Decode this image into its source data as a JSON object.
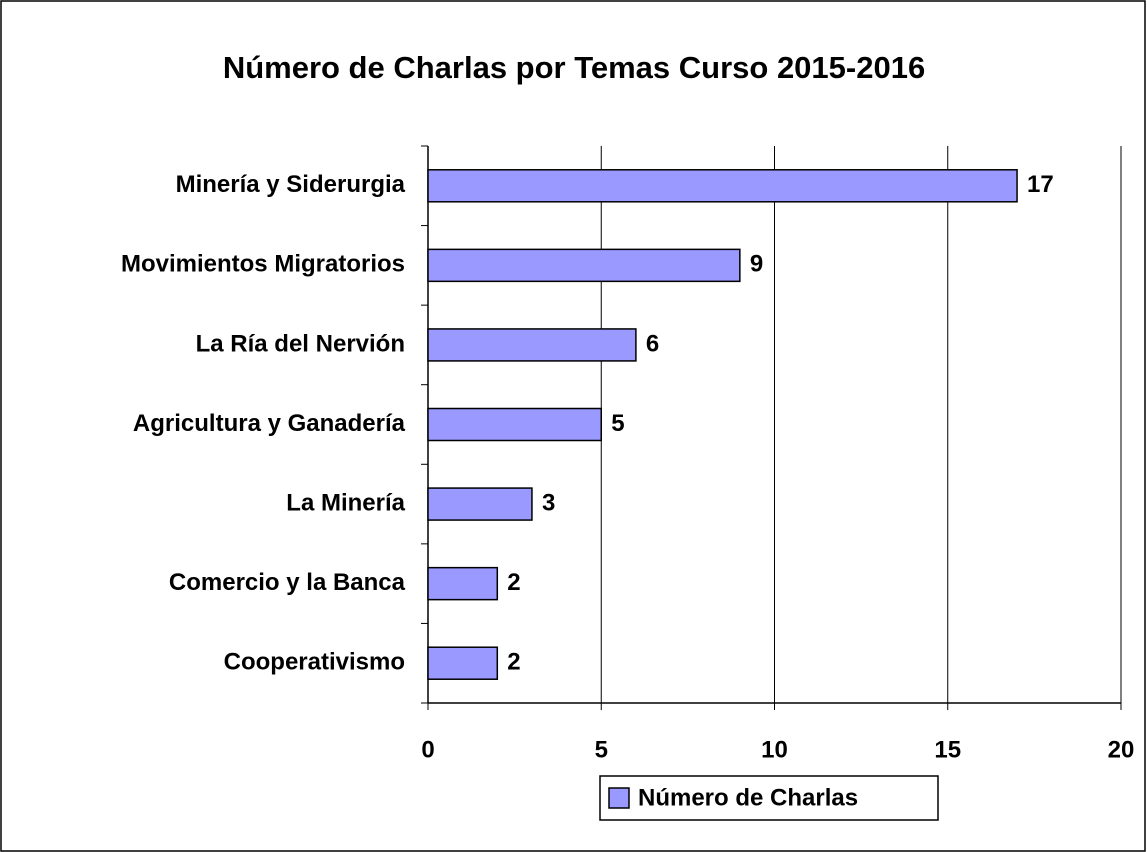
{
  "chart_data": {
    "type": "bar",
    "orientation": "horizontal",
    "title": "Número de Charlas por Temas Curso 2015-2016",
    "categories": [
      "Minería y Siderurgia",
      "Movimientos Migratorios",
      "La Ría del Nervión",
      "Agricultura y Ganadería",
      "La Minería",
      "Comercio y la Banca",
      "Cooperativismo"
    ],
    "series": [
      {
        "name": "Número de Charlas",
        "color": "#9999ff",
        "values": [
          17,
          9,
          6,
          5,
          3,
          2,
          2
        ]
      }
    ],
    "xlim": [
      0,
      20
    ],
    "xticks": [
      0,
      5,
      10,
      15,
      20
    ],
    "grid": true,
    "legend": "bottom"
  }
}
